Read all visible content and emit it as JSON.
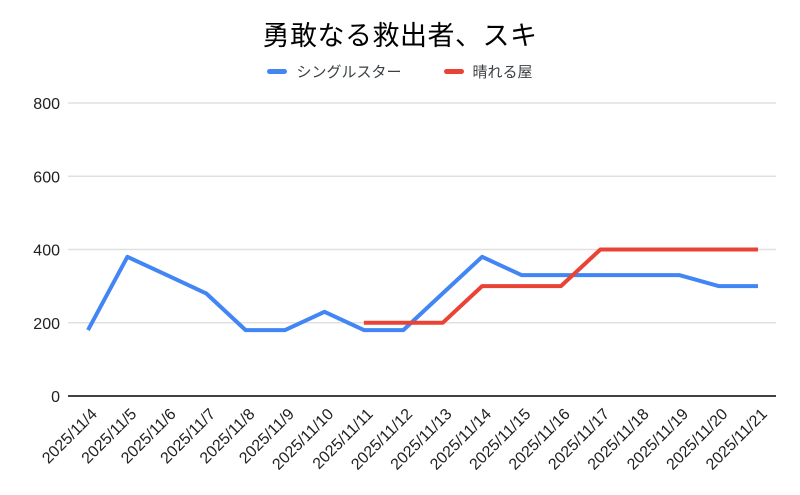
{
  "chart_data": {
    "type": "line",
    "title": "勇敢なる救出者、スキ",
    "categories": [
      "2025/11/4",
      "2025/11/5",
      "2025/11/6",
      "2025/11/7",
      "2025/11/8",
      "2025/11/9",
      "2025/11/10",
      "2025/11/11",
      "2025/11/12",
      "2025/11/13",
      "2025/11/14",
      "2025/11/15",
      "2025/11/16",
      "2025/11/17",
      "2025/11/18",
      "2025/11/19",
      "2025/11/20",
      "2025/11/21"
    ],
    "series": [
      {
        "name": "シングルスター",
        "color": "#4285F4",
        "values": [
          180,
          380,
          330,
          280,
          180,
          180,
          230,
          180,
          180,
          280,
          380,
          330,
          330,
          330,
          330,
          330,
          300,
          300
        ]
      },
      {
        "name": "晴れる屋",
        "color": "#EA4335",
        "values": [
          null,
          null,
          null,
          null,
          null,
          null,
          null,
          200,
          200,
          200,
          300,
          300,
          300,
          400,
          400,
          400,
          400,
          400
        ]
      }
    ],
    "xlabel": "",
    "ylabel": "",
    "ylim": [
      0,
      800
    ],
    "yticks": [
      0,
      200,
      400,
      600,
      800
    ],
    "grid": "horizontal",
    "legend_position": "top",
    "colors": {
      "grid_line": "#E0E0E0",
      "axis_line": "#424242",
      "tick_text": "#212121",
      "legend_text": "#3c4043",
      "title_text": "#000000",
      "background": "#ffffff"
    }
  }
}
